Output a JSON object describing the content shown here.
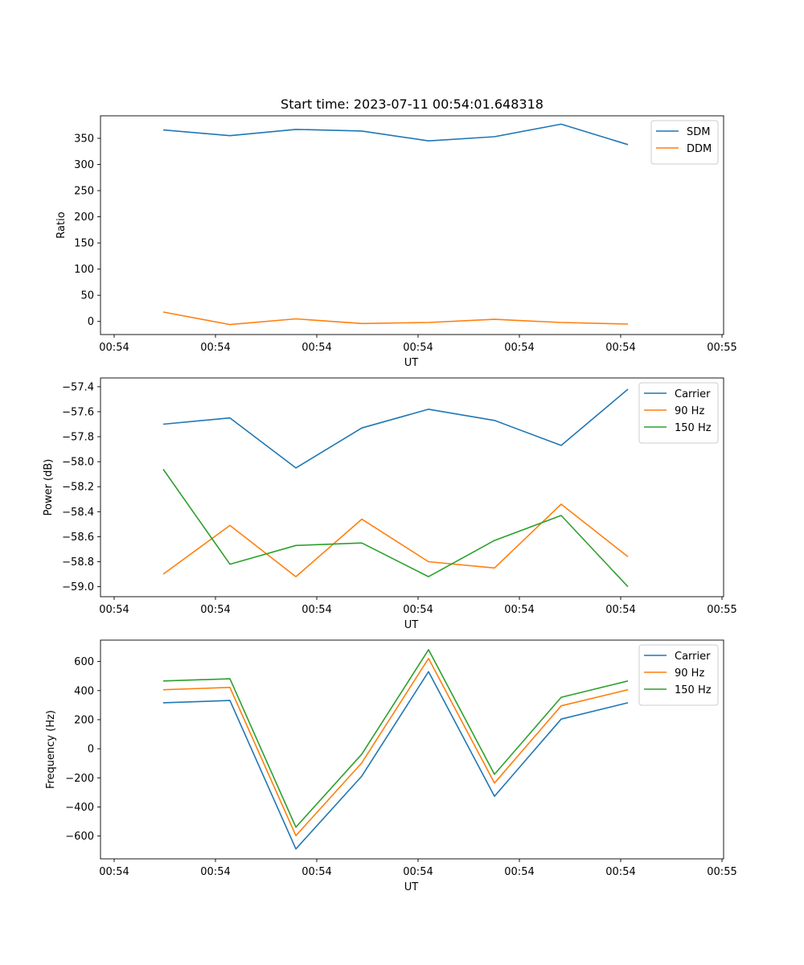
{
  "figure": {
    "title": "Start time: 2023-07-11 00:54:01.648318"
  },
  "chart_data": [
    {
      "type": "line",
      "title": "Start time: 2023-07-11 00:54:01.648318",
      "xlabel": "UT",
      "ylabel": "Ratio",
      "x_tick_labels": [
        "00:54",
        "00:54",
        "00:54",
        "00:54",
        "00:54",
        "00:54",
        "00:55"
      ],
      "ylim": [
        -25,
        393
      ],
      "y_ticks": [
        0,
        50,
        100,
        150,
        200,
        250,
        300,
        350
      ],
      "legend_position": "top-right",
      "series": [
        {
          "name": "SDM",
          "color": "#1f77b4",
          "values": [
            366,
            355,
            367,
            364,
            345,
            353,
            377,
            338
          ]
        },
        {
          "name": "DDM",
          "color": "#ff7f0e",
          "values": [
            18,
            -6,
            5,
            -4,
            -2,
            4,
            -2,
            -5
          ]
        }
      ]
    },
    {
      "type": "line",
      "title": "",
      "xlabel": "UT",
      "ylabel": "Power (dB)",
      "x_tick_labels": [
        "00:54",
        "00:54",
        "00:54",
        "00:54",
        "00:54",
        "00:54",
        "00:55"
      ],
      "ylim": [
        -59.08,
        -57.33
      ],
      "y_ticks": [
        -59.0,
        -58.8,
        -58.6,
        -58.4,
        -58.2,
        -58.0,
        -57.8,
        -57.6,
        -57.4
      ],
      "y_tick_labels": [
        "−59.0",
        "−58.8",
        "−58.6",
        "−58.4",
        "−58.2",
        "−58.0",
        "−57.8",
        "−57.6",
        "−57.4"
      ],
      "legend_position": "top-right",
      "series": [
        {
          "name": "Carrier",
          "color": "#1f77b4",
          "values": [
            -57.7,
            -57.65,
            -58.05,
            -57.73,
            -57.58,
            -57.67,
            -57.87,
            -57.42
          ]
        },
        {
          "name": "90 Hz",
          "color": "#ff7f0e",
          "values": [
            -58.9,
            -58.51,
            -58.92,
            -58.46,
            -58.8,
            -58.85,
            -58.34,
            -58.76
          ]
        },
        {
          "name": "150 Hz",
          "color": "#2ca02c",
          "values": [
            -58.06,
            -58.82,
            -58.67,
            -58.65,
            -58.92,
            -58.63,
            -58.43,
            -59.0
          ]
        }
      ]
    },
    {
      "type": "line",
      "title": "",
      "xlabel": "UT",
      "ylabel": "Frequency (Hz)",
      "x_tick_labels": [
        "00:54",
        "00:54",
        "00:54",
        "00:54",
        "00:54",
        "00:54",
        "00:55"
      ],
      "ylim": [
        -757,
        747
      ],
      "y_ticks": [
        -600,
        -400,
        -200,
        0,
        200,
        400,
        600
      ],
      "y_tick_labels": [
        "−600",
        "−400",
        "−200",
        "0",
        "200",
        "400",
        "600"
      ],
      "legend_position": "top-right",
      "series": [
        {
          "name": "Carrier",
          "color": "#1f77b4",
          "values": [
            316,
            332,
            -689,
            -188,
            530,
            -327,
            204,
            316
          ]
        },
        {
          "name": "90 Hz",
          "color": "#ff7f0e",
          "values": [
            406,
            422,
            -598,
            -97,
            621,
            -236,
            295,
            406
          ]
        },
        {
          "name": "150 Hz",
          "color": "#2ca02c",
          "values": [
            466,
            481,
            -539,
            -37,
            681,
            -176,
            354,
            466
          ]
        }
      ]
    }
  ]
}
